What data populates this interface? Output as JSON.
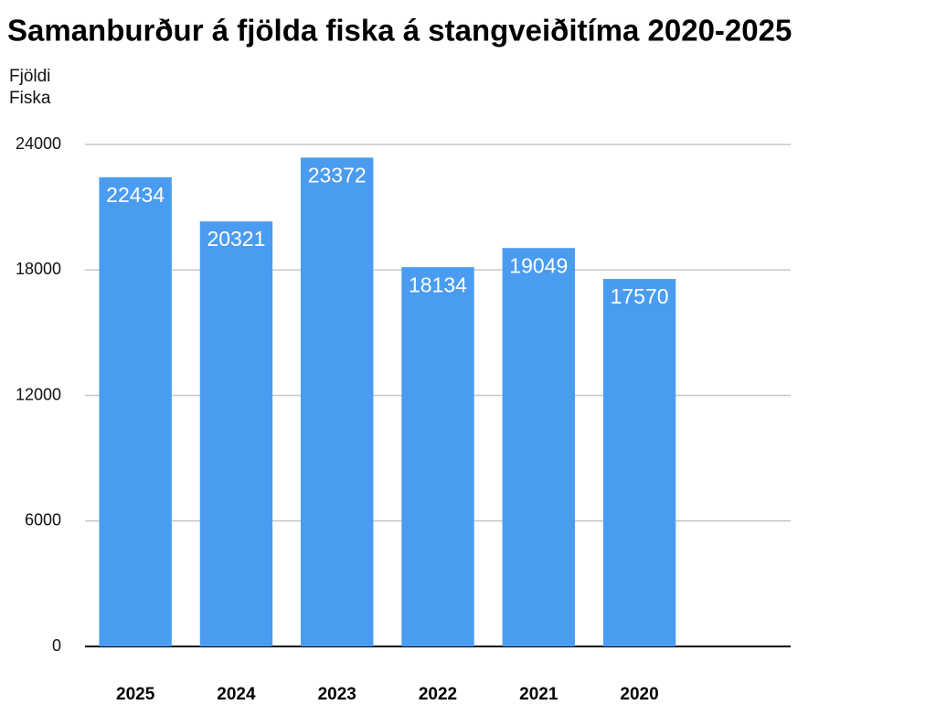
{
  "chart_data": {
    "type": "bar",
    "title": "Samanburður á fjölda fiska á stangveiðitíma 2020-2025",
    "y_label": "Fjöldi Fiska",
    "categories": [
      "2025",
      "2024",
      "2023",
      "2022",
      "2021",
      "2020",
      null
    ],
    "values": [
      22434,
      20321,
      23372,
      18134,
      19049,
      17570,
      null
    ],
    "color": "#4a9cf0",
    "ylim": [
      0,
      24000
    ],
    "yticks": [
      0,
      6000,
      12000,
      18000,
      24000
    ],
    "grid": true
  }
}
